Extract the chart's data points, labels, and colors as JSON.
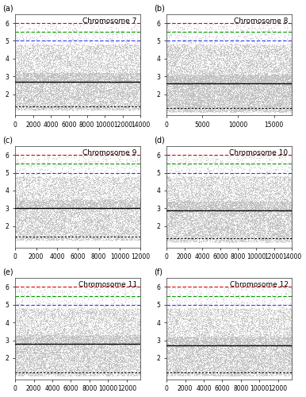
{
  "chromosomes": [
    7,
    8,
    9,
    10,
    11,
    12
  ],
  "panel_labels": [
    "(a)",
    "(b)",
    "(c)",
    "(d)",
    "(e)",
    "(f)"
  ],
  "n_points": [
    14000,
    17500,
    12000,
    14000,
    13500,
    13500
  ],
  "x_max": [
    14000,
    17500,
    12000,
    14000,
    13500,
    13500
  ],
  "x_ticks": [
    [
      0,
      2000,
      4000,
      6000,
      8000,
      10000,
      12000,
      14000
    ],
    [
      0,
      5000,
      10000,
      15000
    ],
    [
      0,
      2000,
      4000,
      6000,
      8000,
      10000,
      12000
    ],
    [
      0,
      2000,
      4000,
      6000,
      8000,
      10000,
      12000,
      14000
    ],
    [
      0,
      2000,
      4000,
      6000,
      8000,
      10000,
      12000
    ],
    [
      0,
      2000,
      4000,
      6000,
      8000,
      10000,
      12000
    ]
  ],
  "mean_mic": [
    0.27,
    0.26,
    0.3,
    0.29,
    0.28,
    0.27
  ],
  "lower_threshold": [
    0.13,
    0.12,
    0.14,
    0.13,
    0.12,
    0.12
  ],
  "upper_blue": 0.5,
  "upper_green": 0.55,
  "upper_red": 0.6,
  "ylim": [
    0.08,
    0.65
  ],
  "yticks": [
    0.2,
    0.3,
    0.4,
    0.5,
    0.6
  ],
  "ytick_labels": [
    "2",
    "3",
    "4",
    "5",
    "6"
  ],
  "dot_color": "#bbbbbb",
  "dot_alpha": 0.6,
  "dot_size": 0.5,
  "mean_color": "#000000",
  "lower_color": "#000000",
  "blue_color": "#3333ff",
  "green_color": "#009900",
  "red_color": "#dd0000",
  "background_color": "#ffffff",
  "title_fontsize": 6.5,
  "label_fontsize": 7,
  "tick_fontsize": 5.5
}
